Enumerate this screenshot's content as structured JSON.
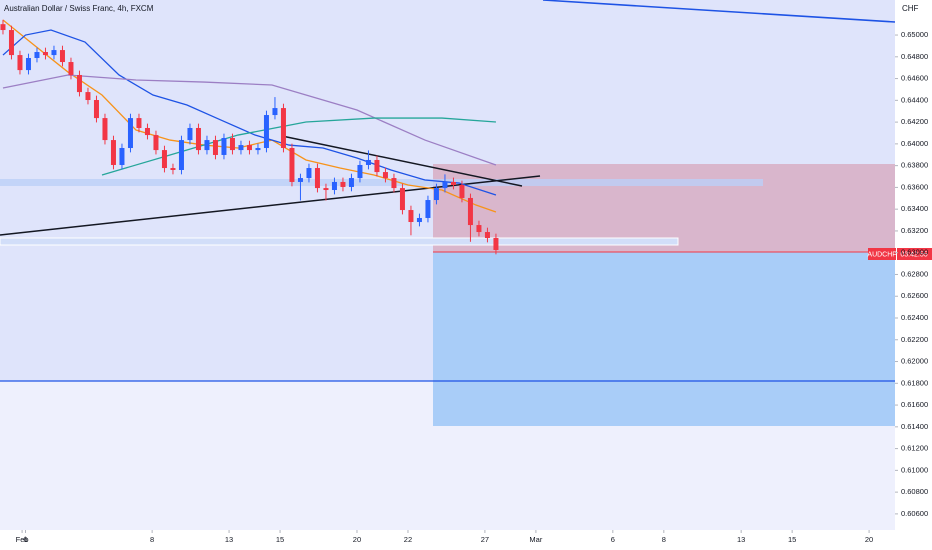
{
  "chart_data": {
    "type": "candlestick",
    "title": "Australian Dollar / Swiss Franc, 4h, FXCM",
    "currency": "CHF",
    "symbol_label": "AUDCHF",
    "countdown_label": "03:42:55",
    "up_color": "#2962ff",
    "down_color": "#f23645",
    "x": [
      0.7,
      2.7,
      4.7,
      6.7,
      8.7,
      10.7,
      12.7,
      14.7,
      16.7,
      18.7,
      20.7,
      22.7,
      24.7,
      26.7,
      28.7,
      30.7,
      32.7,
      34.7,
      36.7,
      38.7,
      40.7,
      42.7,
      44.7,
      46.7,
      48.7,
      50.7,
      52.7,
      54.7,
      56.7,
      58.7,
      60.7,
      62.7,
      64.7,
      66.7,
      68.7,
      70.7,
      72.7,
      74.7,
      76.7,
      78.7,
      80.7,
      82.7,
      84.7,
      86.7,
      88.7,
      90.7,
      92.7,
      94.7,
      96.7,
      98.7,
      100.7,
      102.7,
      104.7,
      106.7,
      108.7,
      110.7,
      112.7,
      114.7,
      116.7
    ],
    "open": [
      0.651,
      0.65046,
      0.64816,
      0.64678,
      0.64789,
      0.64844,
      0.64816,
      0.64862,
      0.64752,
      0.64633,
      0.64476,
      0.64403,
      0.64237,
      0.64035,
      0.63806,
      0.63962,
      0.64237,
      0.64146,
      0.64081,
      0.63943,
      0.63778,
      0.6376,
      0.64035,
      0.64146,
      0.63943,
      0.64035,
      0.63898,
      0.64054,
      0.63943,
      0.63989,
      0.63943,
      0.63962,
      0.64265,
      0.64329,
      0.63962,
      0.6365,
      0.63686,
      0.63778,
      0.63594,
      0.63576,
      0.6365,
      0.63604,
      0.63686,
      0.63806,
      0.63852,
      0.63741,
      0.63686,
      0.63594,
      0.63392,
      0.63282,
      0.63319,
      0.63484,
      0.63594,
      0.6365,
      0.63622,
      0.63503,
      0.63254,
      0.6319,
      0.63135
    ],
    "high": [
      0.6514,
      0.65086,
      0.64856,
      0.64829,
      0.64884,
      0.64884,
      0.64902,
      0.64902,
      0.64792,
      0.64673,
      0.64516,
      0.64443,
      0.64277,
      0.64075,
      0.64002,
      0.64277,
      0.64277,
      0.64186,
      0.64121,
      0.63983,
      0.63818,
      0.64075,
      0.64186,
      0.64186,
      0.64075,
      0.64075,
      0.64094,
      0.64094,
      0.64029,
      0.64029,
      0.64002,
      0.64305,
      0.6443,
      0.64369,
      0.64002,
      0.63726,
      0.63818,
      0.63818,
      0.63634,
      0.6369,
      0.6369,
      0.63726,
      0.63846,
      0.6394,
      0.63892,
      0.63781,
      0.63726,
      0.63634,
      0.63432,
      0.63359,
      0.63524,
      0.63634,
      0.6372,
      0.6369,
      0.63662,
      0.63543,
      0.63294,
      0.6323,
      0.63175
    ],
    "low": [
      0.65006,
      0.64776,
      0.64638,
      0.64638,
      0.64749,
      0.64776,
      0.64776,
      0.64712,
      0.64593,
      0.64436,
      0.64363,
      0.64197,
      0.63995,
      0.63766,
      0.63766,
      0.63922,
      0.64106,
      0.64041,
      0.63903,
      0.63738,
      0.6372,
      0.6372,
      0.63995,
      0.63903,
      0.63903,
      0.63858,
      0.63858,
      0.63903,
      0.63903,
      0.63903,
      0.63903,
      0.63922,
      0.64225,
      0.63922,
      0.6361,
      0.6348,
      0.63646,
      0.63554,
      0.6348,
      0.63536,
      0.63564,
      0.63564,
      0.63646,
      0.63766,
      0.63701,
      0.63646,
      0.63554,
      0.63352,
      0.6316,
      0.63242,
      0.63279,
      0.63444,
      0.63554,
      0.63582,
      0.63463,
      0.631,
      0.6315,
      0.63095,
      0.62985
    ],
    "close": [
      0.65046,
      0.64816,
      0.64678,
      0.64789,
      0.64844,
      0.64816,
      0.64862,
      0.64752,
      0.64633,
      0.64476,
      0.64403,
      0.64237,
      0.64035,
      0.63806,
      0.63962,
      0.64237,
      0.64146,
      0.64081,
      0.63943,
      0.63778,
      0.6376,
      0.64035,
      0.64146,
      0.63943,
      0.64035,
      0.63898,
      0.64054,
      0.63943,
      0.63989,
      0.63943,
      0.63962,
      0.64265,
      0.64329,
      0.63962,
      0.6365,
      0.63686,
      0.63778,
      0.63594,
      0.63576,
      0.6365,
      0.63604,
      0.63686,
      0.63806,
      0.63852,
      0.63741,
      0.63686,
      0.63594,
      0.63392,
      0.63282,
      0.63319,
      0.63484,
      0.63594,
      0.6365,
      0.63622,
      0.63503,
      0.63254,
      0.6319,
      0.63135,
      0.63025
    ],
    "lines": [
      {
        "color": "#f7931a",
        "x": [
          0.7,
          8,
          16,
          24,
          32,
          40,
          48,
          56,
          64,
          72,
          80,
          88,
          96,
          104,
          112,
          116.7
        ],
        "values": [
          0.65138,
          0.64908,
          0.6466,
          0.64449,
          0.64127,
          0.64035,
          0.63989,
          0.63962,
          0.64035,
          0.63852,
          0.63778,
          0.63714,
          0.63622,
          0.63576,
          0.63438,
          0.63374
        ]
      },
      {
        "color": "#1e53e5",
        "x": [
          0.7,
          6,
          12,
          20,
          28,
          36,
          44,
          52,
          60,
          68,
          76,
          84,
          92,
          100,
          108,
          116.7
        ],
        "values": [
          0.64816,
          0.65,
          0.65046,
          0.64936,
          0.64633,
          0.64449,
          0.64357,
          0.64219,
          0.64081,
          0.63989,
          0.63962,
          0.6387,
          0.6376,
          0.63668,
          0.6364,
          0.6353
        ]
      },
      {
        "color": "#9c7fc4",
        "x": [
          0.7,
          16,
          32,
          48,
          64,
          72,
          84,
          100,
          116.7
        ],
        "values": [
          0.64513,
          0.64633,
          0.64587,
          0.64568,
          0.64541,
          0.64449,
          0.64311,
          0.64035,
          0.63806
        ]
      },
      {
        "color": "#26a69a",
        "x": [
          24,
          40,
          56,
          72,
          88,
          104,
          116.7
        ],
        "values": [
          0.63714,
          0.63898,
          0.64081,
          0.64201,
          0.64237,
          0.64237,
          0.64201
        ]
      }
    ],
    "xlim": [
      0,
      210.6
    ],
    "xticks": [
      {
        "value": 5.2,
        "label": "Feb"
      },
      6,
      {
        "value": 35.8,
        "label": "8"
      },
      {
        "value": 53.9,
        "label": "13"
      },
      {
        "value": 65.9,
        "label": "15"
      },
      {
        "value": 84,
        "label": "20"
      },
      {
        "value": 96,
        "label": "22"
      },
      {
        "value": 114.1,
        "label": "27"
      },
      {
        "value": 126.1,
        "label": "Mar"
      },
      {
        "value": 144.2,
        "label": "6"
      },
      {
        "value": 156.2,
        "label": "8"
      },
      {
        "value": 174.4,
        "label": "13"
      },
      {
        "value": 186.4,
        "label": "15"
      },
      {
        "value": 204.5,
        "label": "20"
      }
    ],
    "ylim": [
      0.60452,
      0.65322
    ],
    "yticks": [
      {
        "value": 0.65,
        "label": "0.65000"
      },
      {
        "value": 0.648,
        "label": "0.64800"
      },
      {
        "value": 0.646,
        "label": "0.64600"
      },
      {
        "value": 0.644,
        "label": "0.64400"
      },
      {
        "value": 0.642,
        "label": "0.64200"
      },
      {
        "value": 0.64,
        "label": "0.64000"
      },
      {
        "value": 0.638,
        "label": "0.63800"
      },
      {
        "value": 0.636,
        "label": "0.63600"
      },
      {
        "value": 0.634,
        "label": "0.63400"
      },
      {
        "value": 0.632,
        "label": "0.63200"
      },
      {
        "value": 0.63,
        "label": "0.63000"
      },
      {
        "value": 0.628,
        "label": "0.62800"
      },
      {
        "value": 0.626,
        "label": "0.62600"
      },
      {
        "value": 0.624,
        "label": "0.62400"
      },
      {
        "value": 0.622,
        "label": "0.62200"
      },
      {
        "value": 0.62,
        "label": "0.62000"
      },
      {
        "value": 0.618,
        "label": "0.61800"
      },
      {
        "value": 0.616,
        "label": "0.61600"
      },
      {
        "value": 0.614,
        "label": "0.61400"
      },
      {
        "value": 0.612,
        "label": "0.61200"
      },
      {
        "value": 0.61,
        "label": "0.61000"
      },
      {
        "value": 0.608,
        "label": "0.60800"
      },
      {
        "value": 0.606,
        "label": "0.60600"
      }
    ]
  }
}
